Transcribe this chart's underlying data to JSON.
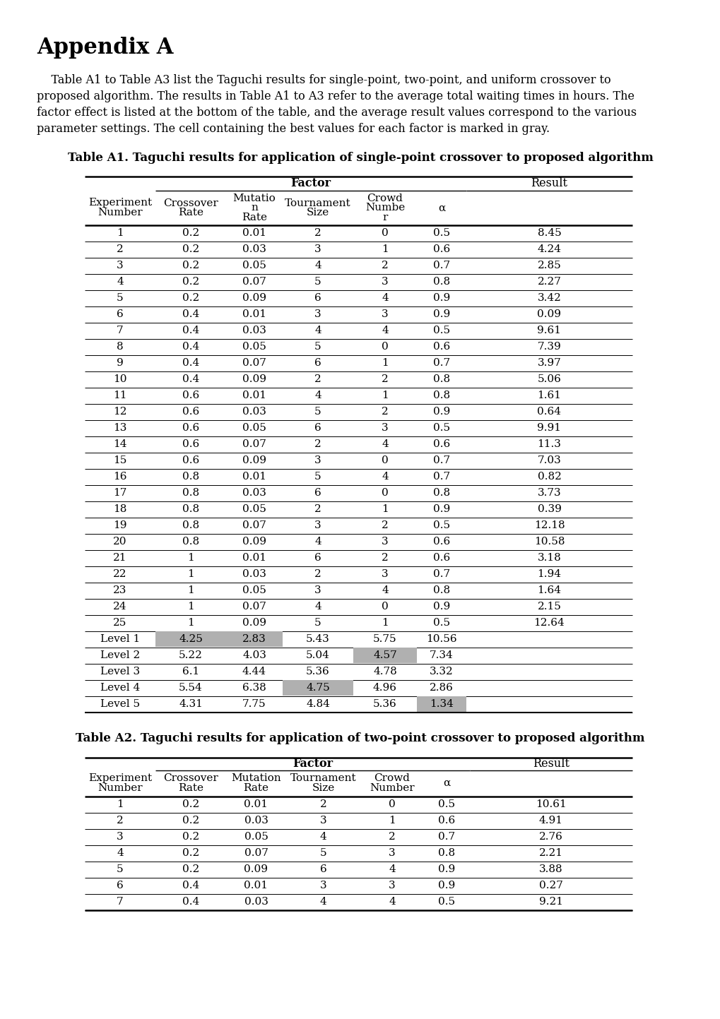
{
  "appendix_title": "Appendix A",
  "para_lines": [
    "    Table A1 to Table A3 list the Taguchi results for single-point, two-point, and uniform crossover to",
    "proposed algorithm. The results in Table A1 to A3 refer to the average total waiting times in hours. The",
    "factor effect is listed at the bottom of the table, and the average result values correspond to the various",
    "parameter settings. The cell containing the best values for each factor is marked in gray."
  ],
  "table1_title": "Table A1. Taguchi results for application of single-point crossover to proposed algorithm",
  "table1_data": [
    [
      "1",
      "0.2",
      "0.01",
      "2",
      "0",
      "0.5",
      "8.45"
    ],
    [
      "2",
      "0.2",
      "0.03",
      "3",
      "1",
      "0.6",
      "4.24"
    ],
    [
      "3",
      "0.2",
      "0.05",
      "4",
      "2",
      "0.7",
      "2.85"
    ],
    [
      "4",
      "0.2",
      "0.07",
      "5",
      "3",
      "0.8",
      "2.27"
    ],
    [
      "5",
      "0.2",
      "0.09",
      "6",
      "4",
      "0.9",
      "3.42"
    ],
    [
      "6",
      "0.4",
      "0.01",
      "3",
      "3",
      "0.9",
      "0.09"
    ],
    [
      "7",
      "0.4",
      "0.03",
      "4",
      "4",
      "0.5",
      "9.61"
    ],
    [
      "8",
      "0.4",
      "0.05",
      "5",
      "0",
      "0.6",
      "7.39"
    ],
    [
      "9",
      "0.4",
      "0.07",
      "6",
      "1",
      "0.7",
      "3.97"
    ],
    [
      "10",
      "0.4",
      "0.09",
      "2",
      "2",
      "0.8",
      "5.06"
    ],
    [
      "11",
      "0.6",
      "0.01",
      "4",
      "1",
      "0.8",
      "1.61"
    ],
    [
      "12",
      "0.6",
      "0.03",
      "5",
      "2",
      "0.9",
      "0.64"
    ],
    [
      "13",
      "0.6",
      "0.05",
      "6",
      "3",
      "0.5",
      "9.91"
    ],
    [
      "14",
      "0.6",
      "0.07",
      "2",
      "4",
      "0.6",
      "11.3"
    ],
    [
      "15",
      "0.6",
      "0.09",
      "3",
      "0",
      "0.7",
      "7.03"
    ],
    [
      "16",
      "0.8",
      "0.01",
      "5",
      "4",
      "0.7",
      "0.82"
    ],
    [
      "17",
      "0.8",
      "0.03",
      "6",
      "0",
      "0.8",
      "3.73"
    ],
    [
      "18",
      "0.8",
      "0.05",
      "2",
      "1",
      "0.9",
      "0.39"
    ],
    [
      "19",
      "0.8",
      "0.07",
      "3",
      "2",
      "0.5",
      "12.18"
    ],
    [
      "20",
      "0.8",
      "0.09",
      "4",
      "3",
      "0.6",
      "10.58"
    ],
    [
      "21",
      "1",
      "0.01",
      "6",
      "2",
      "0.6",
      "3.18"
    ],
    [
      "22",
      "1",
      "0.03",
      "2",
      "3",
      "0.7",
      "1.94"
    ],
    [
      "23",
      "1",
      "0.05",
      "3",
      "4",
      "0.8",
      "1.64"
    ],
    [
      "24",
      "1",
      "0.07",
      "4",
      "0",
      "0.9",
      "2.15"
    ],
    [
      "25",
      "1",
      "0.09",
      "5",
      "1",
      "0.5",
      "12.64"
    ]
  ],
  "table1_levels": [
    [
      "Level 1",
      "4.25",
      "2.83",
      "5.43",
      "5.75",
      "10.56",
      ""
    ],
    [
      "Level 2",
      "5.22",
      "4.03",
      "5.04",
      "4.57",
      "7.34",
      ""
    ],
    [
      "Level 3",
      "6.1",
      "4.44",
      "5.36",
      "4.78",
      "3.32",
      ""
    ],
    [
      "Level 4",
      "5.54",
      "6.38",
      "4.75",
      "4.96",
      "2.86",
      ""
    ],
    [
      "Level 5",
      "4.31",
      "7.75",
      "4.84",
      "5.36",
      "1.34",
      ""
    ]
  ],
  "level_gray": {
    "0": [
      1,
      2
    ],
    "1": [
      4
    ],
    "3": [
      3
    ],
    "4": [
      5
    ]
  },
  "table2_title": "Table A2. Taguchi results for application of two-point crossover to proposed algorithm",
  "table2_data": [
    [
      "1",
      "0.2",
      "0.01",
      "2",
      "0",
      "0.5",
      "10.61"
    ],
    [
      "2",
      "0.2",
      "0.03",
      "3",
      "1",
      "0.6",
      "4.91"
    ],
    [
      "3",
      "0.2",
      "0.05",
      "4",
      "2",
      "0.7",
      "2.76"
    ],
    [
      "4",
      "0.2",
      "0.07",
      "5",
      "3",
      "0.8",
      "2.21"
    ],
    [
      "5",
      "0.2",
      "0.09",
      "6",
      "4",
      "0.9",
      "3.88"
    ],
    [
      "6",
      "0.4",
      "0.01",
      "3",
      "3",
      "0.9",
      "0.27"
    ],
    [
      "7",
      "0.4",
      "0.03",
      "4",
      "4",
      "0.5",
      "9.21"
    ]
  ],
  "bg_color": "#ffffff",
  "gray_color": "#b0b0b0",
  "title_fontsize": 22,
  "para_fontsize": 11.5,
  "table_title_fontsize": 12,
  "cell_fontsize": 11
}
